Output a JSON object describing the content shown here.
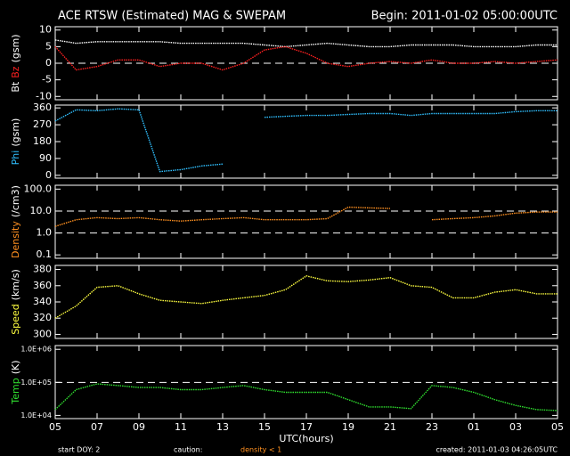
{
  "title": "ACE RTSW (Estimated) MAG & SWEPAM",
  "begin": "Begin: 2011-01-02 05:00:00UTC",
  "xlabel": "UTC(hours)",
  "footer": {
    "start": "start DOY:  2",
    "caution": "caution:",
    "caution_note": "density < 1",
    "created": "created: 2011-01-03 04:26:05UTC"
  },
  "chart_data": [
    {
      "type": "line",
      "ylabel": [
        {
          "text": "Bt",
          "color": "#ffffff"
        },
        {
          "text": "Bz",
          "color": "#ff2020"
        },
        {
          "text": "(gsm)",
          "color": "#ffffff"
        }
      ],
      "x": [
        0,
        1,
        2,
        3,
        4,
        5,
        6,
        7,
        8,
        9,
        10,
        11,
        12,
        13,
        14,
        15,
        16,
        17,
        18,
        19,
        20,
        21,
        22,
        23,
        24
      ],
      "xlim": [
        0,
        24
      ],
      "xticks": [
        0,
        2,
        4,
        6,
        8,
        10,
        12,
        14,
        16,
        18,
        20,
        22,
        24
      ],
      "ylim": [
        -11,
        11
      ],
      "yticks": [
        10,
        5,
        0,
        -5,
        -10
      ],
      "reference_lines": [
        0
      ],
      "series": [
        {
          "name": "Bt",
          "color": "#ffffff",
          "values": [
            7,
            6,
            6.5,
            6.5,
            6.5,
            6.5,
            6,
            6,
            6,
            6,
            5.5,
            5,
            5.5,
            6,
            5.5,
            5,
            5,
            5.5,
            5.5,
            5.5,
            5,
            5,
            5,
            5.5,
            5.5
          ]
        },
        {
          "name": "Bz",
          "color": "#ff2020",
          "values": [
            5,
            -2,
            -1,
            1,
            1,
            -1,
            0,
            0,
            -2,
            0,
            4,
            5,
            3,
            0,
            -1,
            0,
            0.5,
            0,
            1,
            0,
            0,
            0.5,
            0,
            0.5,
            1
          ]
        }
      ]
    },
    {
      "type": "line",
      "ylabel": [
        {
          "text": "Phi",
          "color": "#30c0ff"
        },
        {
          "text": "(gsm)",
          "color": "#ffffff"
        }
      ],
      "x": [
        0,
        1,
        2,
        3,
        4,
        5,
        6,
        7,
        8,
        9,
        10,
        11,
        12,
        13,
        14,
        15,
        16,
        17,
        18,
        19,
        20,
        21,
        22,
        23,
        24
      ],
      "xlim": [
        0,
        24
      ],
      "xticks": [
        0,
        2,
        4,
        6,
        8,
        10,
        12,
        14,
        16,
        18,
        20,
        22,
        24
      ],
      "ylim": [
        -15,
        375
      ],
      "yticks": [
        360,
        270,
        180,
        90,
        0
      ],
      "series": [
        {
          "name": "Phi",
          "color": "#30c0ff",
          "values": [
            290,
            350,
            345,
            355,
            350,
            20,
            30,
            50,
            60,
            null,
            310,
            315,
            320,
            320,
            325,
            330,
            330,
            320,
            330,
            330,
            330,
            330,
            340,
            345,
            345
          ]
        }
      ]
    },
    {
      "type": "line",
      "log": true,
      "ylabel": [
        {
          "text": "Density",
          "color": "#ff9020"
        },
        {
          "text": "(/cm3)",
          "color": "#ffffff"
        }
      ],
      "x": [
        0,
        1,
        2,
        3,
        4,
        5,
        6,
        7,
        8,
        9,
        10,
        11,
        12,
        13,
        14,
        15,
        16,
        17,
        18,
        19,
        20,
        21,
        22,
        23,
        24
      ],
      "xlim": [
        0,
        24
      ],
      "xticks": [
        0,
        2,
        4,
        6,
        8,
        10,
        12,
        14,
        16,
        18,
        20,
        22,
        24
      ],
      "ylim": [
        0.07,
        150
      ],
      "yticks": [
        {
          "value": 100,
          "label": "100.0"
        },
        {
          "value": 10,
          "label": "10.0"
        },
        {
          "value": 1,
          "label": "1.0"
        },
        {
          "value": 0.1,
          "label": "0.1"
        }
      ],
      "reference_lines": [
        10,
        1
      ],
      "series": [
        {
          "name": "Density",
          "color": "#ff9020",
          "values": [
            2,
            4,
            5,
            4.5,
            5,
            4,
            3.5,
            4,
            4.5,
            5,
            4,
            4,
            4,
            4.5,
            15,
            14,
            13,
            null,
            4,
            4.5,
            5,
            6,
            8,
            9,
            9
          ]
        }
      ]
    },
    {
      "type": "line",
      "ylabel": [
        {
          "text": "Speed",
          "color": "#ffff40"
        },
        {
          "text": "(km/s)",
          "color": "#ffffff"
        }
      ],
      "x": [
        0,
        1,
        2,
        3,
        4,
        5,
        6,
        7,
        8,
        9,
        10,
        11,
        12,
        13,
        14,
        15,
        16,
        17,
        18,
        19,
        20,
        21,
        22,
        23,
        24
      ],
      "xlim": [
        0,
        24
      ],
      "xticks": [
        0,
        2,
        4,
        6,
        8,
        10,
        12,
        14,
        16,
        18,
        20,
        22,
        24
      ],
      "ylim": [
        295,
        385
      ],
      "yticks": [
        380,
        360,
        340,
        320,
        300
      ],
      "series": [
        {
          "name": "Speed",
          "color": "#ffff40",
          "values": [
            320,
            335,
            358,
            360,
            350,
            342,
            340,
            338,
            342,
            345,
            348,
            355,
            372,
            366,
            365,
            367,
            370,
            360,
            358,
            345,
            345,
            352,
            355,
            350,
            350
          ]
        }
      ]
    },
    {
      "type": "line",
      "log": true,
      "ylabel": [
        {
          "text": "Temp",
          "color": "#30e030"
        },
        {
          "text": "(K)",
          "color": "#ffffff"
        }
      ],
      "x": [
        0,
        1,
        2,
        3,
        4,
        5,
        6,
        7,
        8,
        9,
        10,
        11,
        12,
        13,
        14,
        15,
        16,
        17,
        18,
        19,
        20,
        21,
        22,
        23,
        24
      ],
      "xlim": [
        0,
        24
      ],
      "xticks": [
        {
          "value": 0,
          "label": "05"
        },
        {
          "value": 2,
          "label": "07"
        },
        {
          "value": 4,
          "label": "09"
        },
        {
          "value": 6,
          "label": "11"
        },
        {
          "value": 8,
          "label": "13"
        },
        {
          "value": 10,
          "label": "15"
        },
        {
          "value": 12,
          "label": "17"
        },
        {
          "value": 14,
          "label": "19"
        },
        {
          "value": 16,
          "label": "21"
        },
        {
          "value": 18,
          "label": "23"
        },
        {
          "value": 20,
          "label": "01"
        },
        {
          "value": 22,
          "label": "03"
        },
        {
          "value": 24,
          "label": "05"
        }
      ],
      "ylim": [
        8000,
        1300000
      ],
      "yticks": [
        {
          "value": 1000000,
          "label": "1.0E+06"
        },
        {
          "value": 100000,
          "label": "1.0E+05"
        },
        {
          "value": 10000,
          "label": "1.0E+04"
        }
      ],
      "reference_lines": [
        100000
      ],
      "series": [
        {
          "name": "Temp",
          "color": "#30e030",
          "values": [
            15000,
            60000,
            90000,
            80000,
            70000,
            70000,
            60000,
            60000,
            70000,
            80000,
            60000,
            50000,
            50000,
            50000,
            30000,
            18000,
            18000,
            16000,
            80000,
            70000,
            50000,
            30000,
            20000,
            15000,
            14000
          ]
        }
      ]
    }
  ]
}
